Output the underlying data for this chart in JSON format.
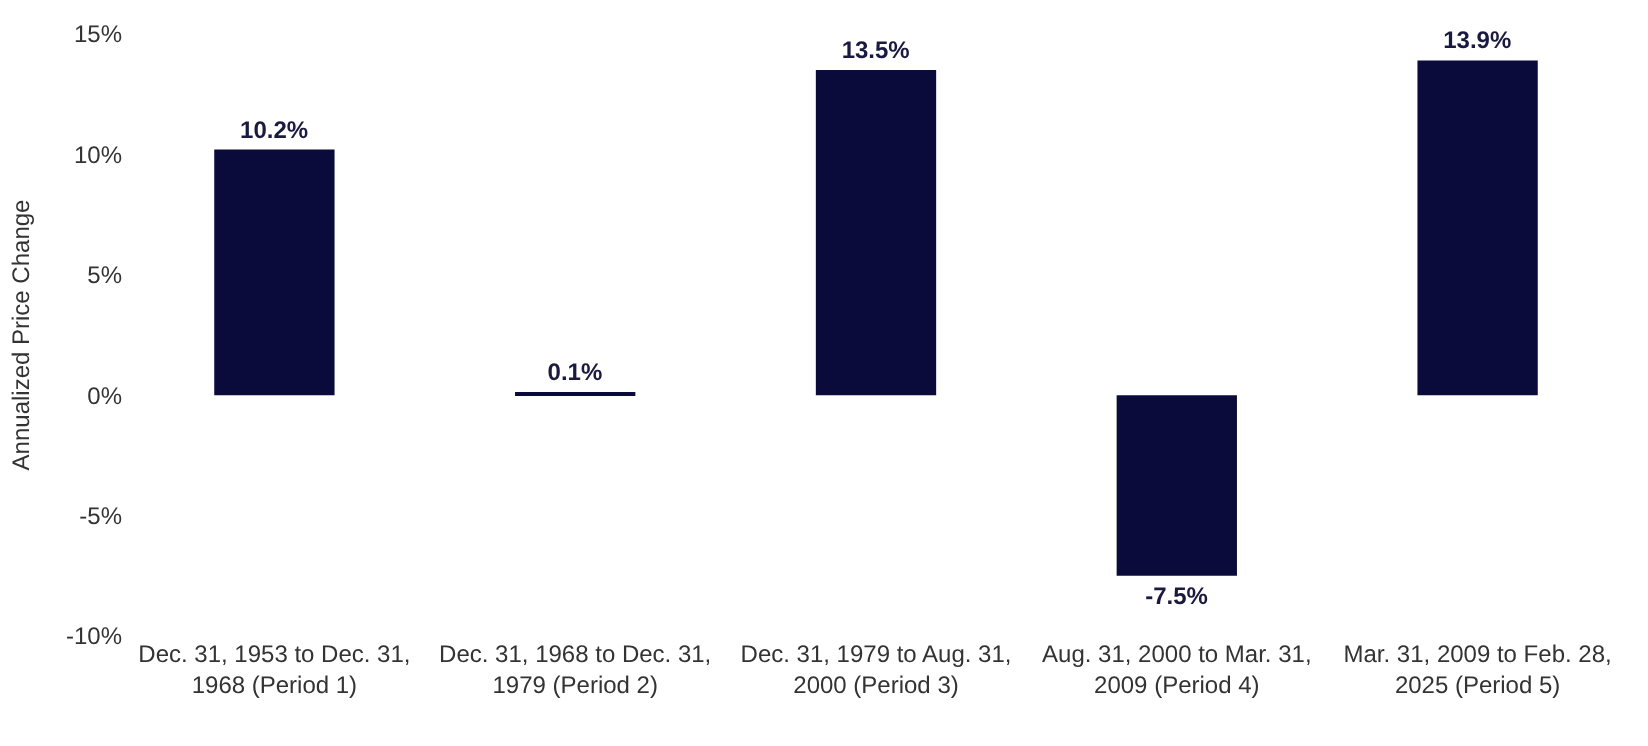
{
  "chart_data": {
    "type": "bar",
    "ylabel": "Annualized Price Change",
    "categories": [
      "Dec. 31, 1953 to Dec. 31, 1968 (Period 1)",
      "Dec. 31, 1968 to Dec. 31, 1979 (Period 2)",
      "Dec. 31, 1979 to Aug. 31, 2000 (Period 3)",
      "Aug. 31, 2000 to Mar. 31, 2009 (Period 4)",
      "Mar. 31, 2009 to Feb. 28, 2025 (Period 5)"
    ],
    "values": [
      10.2,
      0.1,
      13.5,
      -7.5,
      13.9
    ],
    "value_labels": [
      "10.2%",
      "0.1%",
      "13.5%",
      "-7.5%",
      "13.9%"
    ],
    "color": "#0b0b3b",
    "ylim": [
      -10,
      15
    ],
    "yticks": [
      {
        "value": -10,
        "label": "-10%"
      },
      {
        "value": -5,
        "label": "-5%"
      },
      {
        "value": 0,
        "label": "0%"
      },
      {
        "value": 5,
        "label": "5%"
      },
      {
        "value": 10,
        "label": "10%"
      },
      {
        "value": 15,
        "label": "15%"
      }
    ]
  }
}
